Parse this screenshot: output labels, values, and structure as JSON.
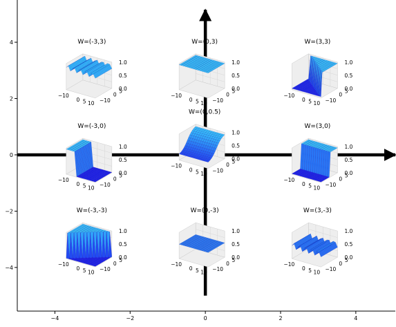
{
  "chart_data": {
    "type": "scatter",
    "title": "",
    "xlabel": "",
    "ylabel": "",
    "xlim": [
      -5.0,
      5.05
    ],
    "ylim": [
      -5.55,
      5.5
    ],
    "x_ticks": [
      -4,
      -2,
      0,
      2,
      4
    ],
    "y_ticks": [
      -4,
      -2,
      0,
      2,
      4
    ],
    "x_tick_labels": [
      "−4",
      "−2",
      "0",
      "2",
      "4"
    ],
    "y_tick_labels": [
      "−4",
      "−2",
      "0",
      "2",
      "4"
    ],
    "grid": false,
    "axes_arrows": [
      {
        "from": [
          -5.0,
          0
        ],
        "to": [
          5.05,
          0
        ]
      },
      {
        "from": [
          0,
          -5.0
        ],
        "to": [
          0,
          5.15
        ]
      }
    ],
    "subplots": [
      {
        "x": -3,
        "y": 3,
        "title": "W=(-3,3)",
        "shape": "ramp_hi"
      },
      {
        "x": 0,
        "y": 3,
        "title": "W=(0,3)",
        "shape": "flat_high"
      },
      {
        "x": 3,
        "y": 3,
        "title": "W=(3,3)",
        "shape": "diag_step"
      },
      {
        "x": -3,
        "y": 0,
        "title": "W=(-3,0)",
        "shape": "step_down"
      },
      {
        "x": 0,
        "y": 0.5,
        "title": "W=(0,0.5)",
        "shape": "gentle"
      },
      {
        "x": 3,
        "y": 0,
        "title": "W=(3,0)",
        "shape": "step_up"
      },
      {
        "x": -3,
        "y": -3,
        "title": "W=(-3,-3)",
        "shape": "diag_down"
      },
      {
        "x": 0,
        "y": -3,
        "title": "W=(0,-3)",
        "shape": "flat_low"
      },
      {
        "x": 3,
        "y": -3,
        "title": "W=(3,-3)",
        "shape": "ramp_lo"
      }
    ],
    "inset_z_ticks": [
      "1.0",
      "0.5",
      "0.0"
    ],
    "inset_x_ticks": [
      "−10",
      "0",
      "5",
      "10"
    ],
    "inset_y_ticks": [
      "−10",
      "0",
      "5"
    ],
    "colors": {
      "surface_top": "#38d8ff",
      "surface_bottom": "#1a1aee",
      "axis": "#000000"
    }
  }
}
